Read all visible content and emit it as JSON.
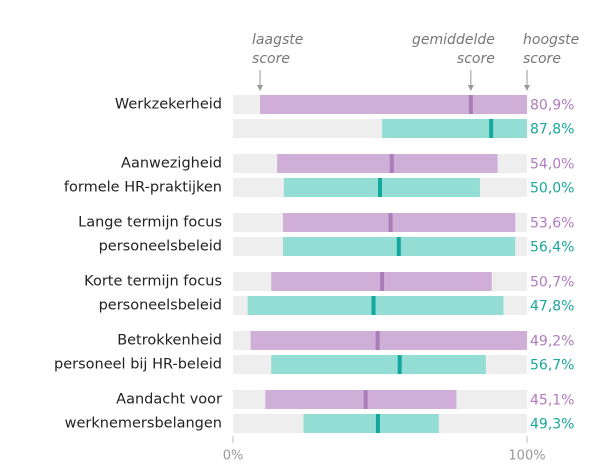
{
  "chart_data": {
    "type": "range_bar",
    "annotations": [
      [
        "laagste",
        "score"
      ],
      [
        "gemiddelde",
        "score"
      ],
      [
        "hoogste",
        "score"
      ]
    ],
    "categories": [
      [
        "Werkzekerheid"
      ],
      [
        "Aanwezigheid",
        "formele HR-praktijken"
      ],
      [
        "Lange termijn focus",
        "personeelsbeleid"
      ],
      [
        "Korte termijn focus",
        "personeelsbeleid"
      ],
      [
        "Betrokkenheid",
        "personeel bij HR-beleid"
      ],
      [
        "Aandacht voor",
        "werknemersbelangen"
      ]
    ],
    "series": [
      {
        "color": "#cfaed8",
        "marker_color": "#a97db8",
        "label_color": "#b07cc0",
        "min": [
          9.2,
          15,
          17,
          13,
          6,
          11
        ],
        "max": [
          100,
          90,
          96,
          88,
          100,
          76
        ],
        "values": [
          80.9,
          54.0,
          53.6,
          50.7,
          49.2,
          45.1
        ],
        "value_labels": [
          "80,9%",
          "54,0%",
          "53,6%",
          "50,7%",
          "49,2%",
          "45,1%"
        ]
      },
      {
        "color": "#93ddd4",
        "marker_color": "#13a89e",
        "label_color": "#1aa79c",
        "min": [
          50.7,
          17.3,
          17,
          5,
          13,
          24
        ],
        "max": [
          100,
          84,
          96,
          92,
          86,
          70
        ],
        "values": [
          87.8,
          50.0,
          56.4,
          47.8,
          56.7,
          49.3
        ],
        "value_labels": [
          "87,8%",
          "50,0%",
          "56,4%",
          "47,8%",
          "56,7%",
          "49,3%"
        ]
      }
    ],
    "xlim": [
      0,
      100
    ],
    "xticks": [
      {
        "value": 0,
        "label": "0%"
      },
      {
        "value": 100,
        "label": "100%"
      }
    ]
  }
}
